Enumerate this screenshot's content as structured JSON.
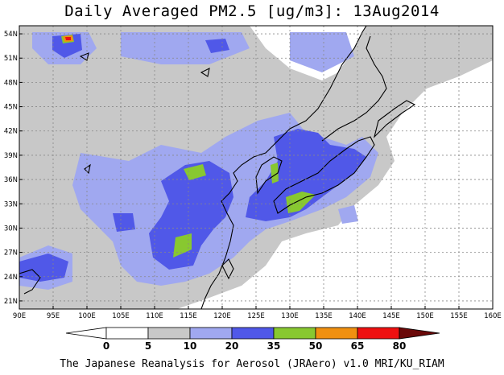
{
  "title": "Daily Averaged PM2.5 [ug/m3]: 13Aug2014",
  "footer": "The Japanese Reanalysis for Aerosol (JRAero) v1.0 MRI/KU_RIAM",
  "map": {
    "lon_range": [
      90,
      160
    ],
    "lat_range": [
      20,
      55
    ],
    "x_ticks": [
      "90E",
      "95E",
      "100E",
      "105E",
      "110E",
      "115E",
      "120E",
      "125E",
      "130E",
      "135E",
      "140E",
      "145E",
      "150E",
      "155E",
      "160E"
    ],
    "y_ticks": [
      "21N",
      "24N",
      "27N",
      "30N",
      "33N",
      "36N",
      "39N",
      "42N",
      "45N",
      "48N",
      "51N",
      "54N"
    ],
    "grid": true
  },
  "legend": {
    "labels": [
      "0",
      "5",
      "10",
      "20",
      "35",
      "50",
      "65",
      "80"
    ],
    "colors": [
      "#ffffff",
      "#c8c8c8",
      "#a0a8f0",
      "#5058e8",
      "#88c830",
      "#f09010",
      "#ee1010",
      "#6a0808"
    ]
  },
  "shading_colors": {
    "c5": "#c8c8c8",
    "c10": "#a0a8f0",
    "c20": "#5058e8",
    "c35": "#88c830",
    "c50": "#f09010",
    "c65": "#ee1010"
  }
}
